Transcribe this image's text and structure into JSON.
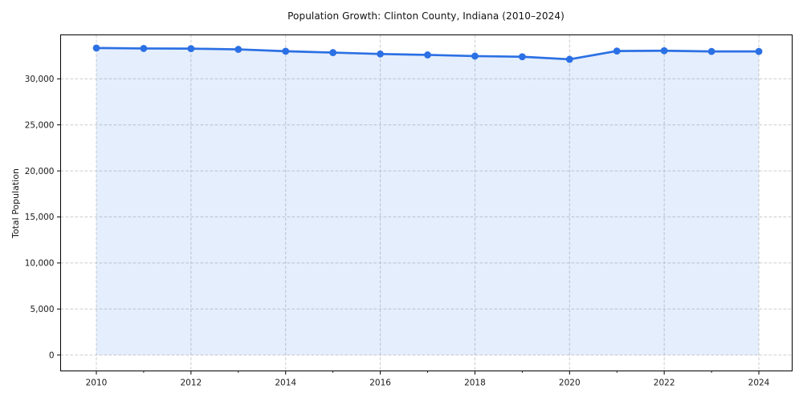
{
  "figure": {
    "title": "Population Growth: Clinton County, Indiana (2010–2024)",
    "background_color": "#ffffff"
  },
  "chart_data": {
    "type": "area",
    "title": "Population Growth: Clinton County, Indiana (2010–2024)",
    "xlabel": "",
    "ylabel": "Total Population",
    "x": [
      2010,
      2011,
      2012,
      2013,
      2014,
      2015,
      2016,
      2017,
      2018,
      2019,
      2020,
      2021,
      2022,
      2023,
      2024
    ],
    "series": [
      {
        "name": "Total Population",
        "values": [
          33350,
          33300,
          33280,
          33200,
          33000,
          32850,
          32700,
          32600,
          32470,
          32400,
          32120,
          33020,
          33050,
          32980,
          32980
        ]
      }
    ],
    "x_major_ticks": [
      2010,
      2012,
      2014,
      2016,
      2018,
      2020,
      2022,
      2024
    ],
    "x_major_tick_labels": [
      "2010",
      "2012",
      "2014",
      "2016",
      "2018",
      "2020",
      "2022",
      "2024"
    ],
    "x_minor_ticks": [
      2011,
      2013,
      2015,
      2017,
      2019,
      2021,
      2023
    ],
    "y_ticks": [
      0,
      5000,
      10000,
      15000,
      20000,
      25000,
      30000
    ],
    "y_tick_labels": [
      "0",
      "5,000",
      "10,000",
      "15,000",
      "20,000",
      "25,000",
      "30,000"
    ],
    "ylim": [
      -1700,
      34800
    ],
    "xlim": [
      2009.25,
      2024.72
    ],
    "grid": true,
    "grid_style": "dashed",
    "legend_position": "none",
    "marker": "circle",
    "colors": {
      "line": "#2b70e4",
      "fill": "#2b70e4",
      "fill_opacity": 0.12,
      "grid": "#cccccc",
      "spine": "#000000",
      "tick_text": "#1a1a1a"
    }
  }
}
